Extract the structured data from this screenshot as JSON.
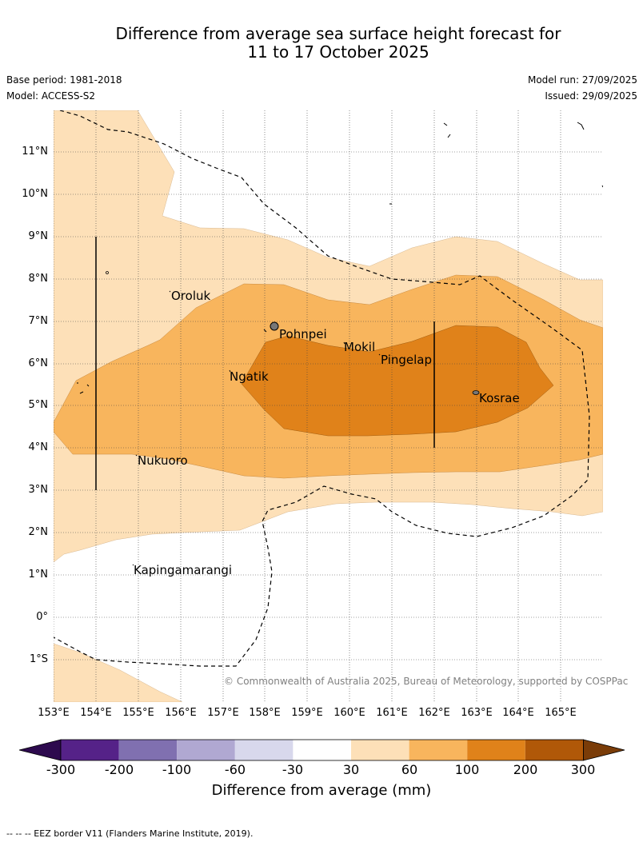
{
  "title_line1": "Difference from average sea surface height forecast for",
  "title_line2": "11 to 17 October 2025",
  "base_period": "Base period: 1981-2018",
  "model": "Model: ACCESS-S2",
  "model_run": "Model run: 27/09/2025",
  "issued": "Issued: 29/09/2025",
  "lat_labels": [
    "11°N",
    "10°N",
    "9°N",
    "8°N",
    "7°N",
    "6°N",
    "5°N",
    "4°N",
    "3°N",
    "2°N",
    "1°N",
    "0°",
    "1°S"
  ],
  "lon_labels": [
    "153°E",
    "154°E",
    "155°E",
    "156°E",
    "157°E",
    "158°E",
    "159°E",
    "160°E",
    "161°E",
    "162°E",
    "163°E",
    "164°E",
    "165°E"
  ],
  "places": {
    "oroluk": "Oroluk",
    "pohnpei": "Pohnpei",
    "mokil": "Mokil",
    "pingelap": "Pingelap",
    "ngatik": "Ngatik",
    "kosrae": "Kosrae",
    "nukuoro": "Nukuoro",
    "kapingamarangi": "Kapingamarangi"
  },
  "copyright": "© Commonwealth of Australia 2025, Bureau of Meteorology, supported by COSPPac",
  "colorbar": {
    "ticks": [
      "-300",
      "-200",
      "-100",
      "-60",
      "-30",
      "30",
      "60",
      "100",
      "200",
      "300"
    ],
    "colors": [
      "#2d0a4e",
      "#552288",
      "#8070b0",
      "#b0a8d2",
      "#d8d8ec",
      "#ffffff",
      "#fde0b8",
      "#f8b55d",
      "#e0821a",
      "#b05808",
      "#7a3c08"
    ],
    "label": "Difference from average (mm)"
  },
  "footnote": "--  --  -- EEZ border V11 (Flanders Marine Institute, 2019)."
}
